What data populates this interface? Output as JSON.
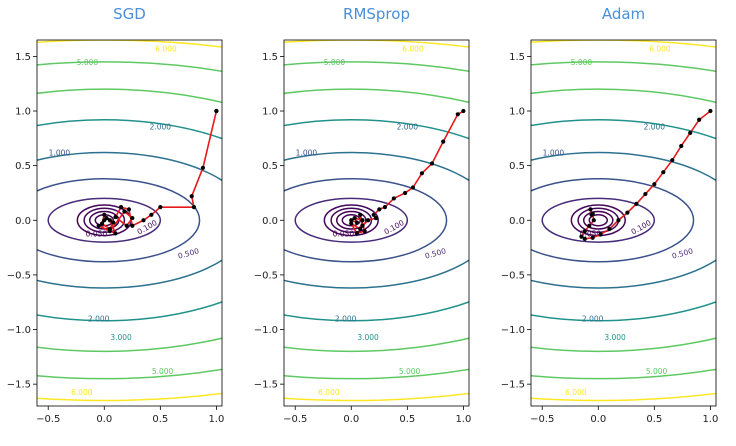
{
  "chart_data": [
    {
      "type": "line",
      "title": "SGD",
      "xlabel": "",
      "ylabel": "",
      "xlim": [
        -0.6,
        1.05
      ],
      "ylim": [
        -1.7,
        1.65
      ],
      "xticks": [
        "−0.5",
        "0.0",
        "0.5",
        "1.0"
      ],
      "yticks": [
        "1.5",
        "1.0",
        "0.5",
        "0.0",
        "−0.5",
        "−1.0",
        "−1.5"
      ],
      "contour_levels": [
        "0.050",
        "0.100",
        "0.500",
        "1.000",
        "2.000",
        "3.000",
        "5.000",
        "6.000"
      ],
      "contour_colors": [
        "#440154",
        "#45075a",
        "#472c7a",
        "#3b528b",
        "#2c728e",
        "#21918c",
        "#5ec962",
        "#fde725"
      ],
      "path_color": "#e41a1c",
      "series": [
        {
          "x": [
            1.0,
            1.0,
            0.88,
            0.78,
            0.8,
            0.5,
            0.42,
            0.35,
            0.25,
            0.22,
            0.15,
            0.1,
            0.2,
            0.25,
            0.18,
            0.05,
            -0.05,
            0.1,
            0.05,
            0.0,
            -0.02,
            0.05,
            0.08,
            0.02,
            0.0
          ],
          "y": [
            1.0,
            1.0,
            0.48,
            0.22,
            0.12,
            0.12,
            0.05,
            0.0,
            -0.05,
            0.1,
            0.12,
            0.03,
            -0.05,
            0.02,
            0.08,
            -0.1,
            -0.05,
            -0.12,
            0.0,
            0.05,
            -0.03,
            -0.08,
            -0.02,
            0.02,
            0.0
          ]
        }
      ]
    },
    {
      "type": "line",
      "title": "RMSprop",
      "xlabel": "",
      "ylabel": "",
      "xlim": [
        -0.6,
        1.05
      ],
      "ylim": [
        -1.7,
        1.65
      ],
      "xticks": [
        "−0.5",
        "0.0",
        "0.5",
        "1.0"
      ],
      "yticks": [
        "1.5",
        "1.0",
        "0.5",
        "0.0",
        "−0.5",
        "−1.0",
        "−1.5"
      ],
      "contour_levels": [
        "0.050",
        "0.100",
        "0.500",
        "1.000",
        "2.000",
        "3.000",
        "5.000",
        "6.000"
      ],
      "contour_colors": [
        "#440154",
        "#45075a",
        "#472c7a",
        "#3b528b",
        "#2c728e",
        "#21918c",
        "#5ec962",
        "#fde725"
      ],
      "path_color": "#e41a1c",
      "series": [
        {
          "x": [
            1.0,
            0.95,
            0.82,
            0.72,
            0.63,
            0.55,
            0.48,
            0.38,
            0.3,
            0.25,
            0.2,
            0.22,
            0.15,
            0.1,
            0.08,
            0.12,
            0.05,
            0.0,
            0.08,
            0.1,
            0.03,
            0.05,
            0.0
          ],
          "y": [
            1.0,
            0.97,
            0.72,
            0.52,
            0.43,
            0.3,
            0.25,
            0.2,
            0.12,
            0.1,
            0.05,
            0.02,
            0.0,
            -0.05,
            0.05,
            -0.1,
            -0.12,
            -0.03,
            -0.08,
            0.0,
            0.02,
            -0.02,
            0.0
          ]
        }
      ]
    },
    {
      "type": "line",
      "title": "Adam",
      "xlabel": "",
      "ylabel": "",
      "xlim": [
        -0.6,
        1.05
      ],
      "ylim": [
        -1.7,
        1.65
      ],
      "xticks": [
        "−0.5",
        "0.0",
        "0.5",
        "1.0"
      ],
      "yticks": [
        "1.5",
        "1.0",
        "0.5",
        "0.0",
        "−0.5",
        "−1.0",
        "−1.5"
      ],
      "contour_levels": [
        "0.050",
        "0.100",
        "0.500",
        "1.000",
        "2.000",
        "3.000",
        "5.000",
        "6.000"
      ],
      "contour_colors": [
        "#440154",
        "#45075a",
        "#472c7a",
        "#3b528b",
        "#2c728e",
        "#21918c",
        "#5ec962",
        "#fde725"
      ],
      "path_color": "#e41a1c",
      "series": [
        {
          "x": [
            1.0,
            0.9,
            0.82,
            0.74,
            0.66,
            0.58,
            0.5,
            0.42,
            0.34,
            0.26,
            0.18,
            0.1,
            0.02,
            -0.05,
            -0.12,
            -0.15,
            -0.12,
            -0.08,
            -0.04,
            -0.05,
            -0.07,
            -0.06
          ],
          "y": [
            1.0,
            0.92,
            0.8,
            0.68,
            0.55,
            0.44,
            0.33,
            0.24,
            0.15,
            0.07,
            0.0,
            -0.08,
            -0.13,
            -0.16,
            -0.17,
            -0.15,
            -0.1,
            -0.05,
            0.0,
            0.06,
            0.1,
            0.05
          ]
        }
      ]
    }
  ]
}
